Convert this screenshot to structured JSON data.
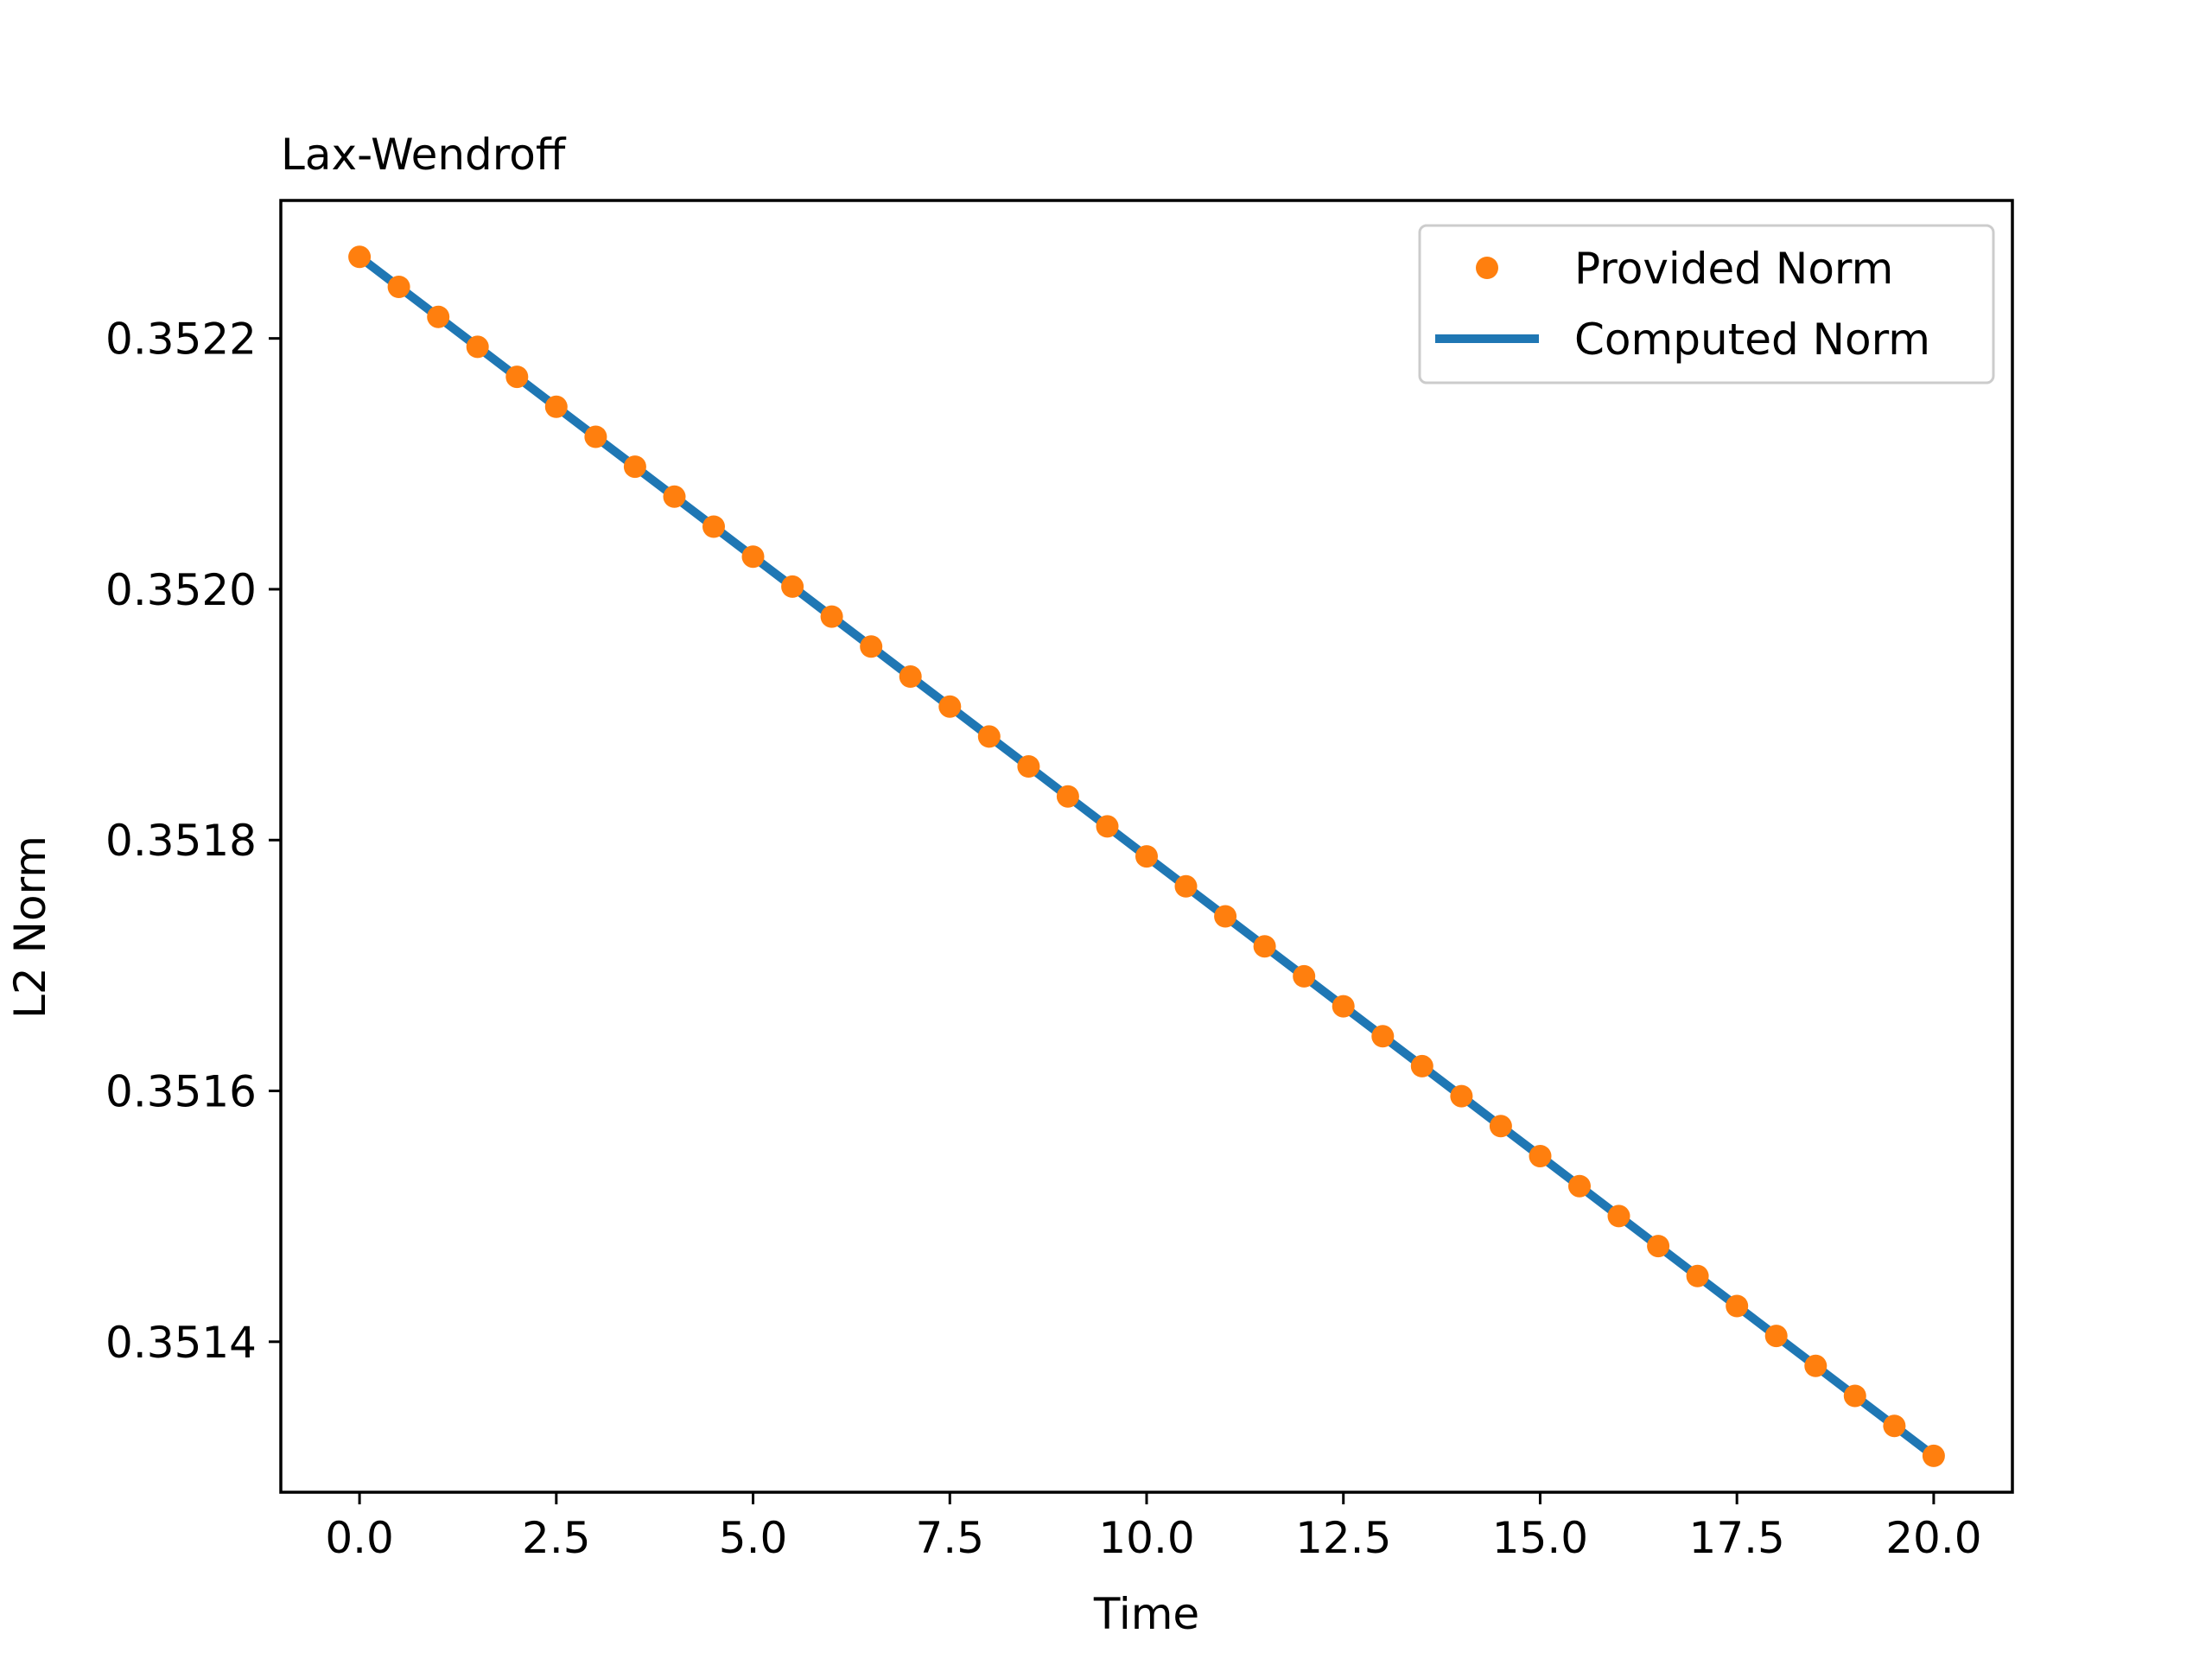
{
  "chart_data": {
    "type": "line",
    "title": "Lax-Wendroff",
    "xlabel": "Time",
    "ylabel": "L2 Norm",
    "xlim": [
      -1.0,
      21.0
    ],
    "ylim": [
      0.35128,
      0.35231
    ],
    "x_ticks": [
      0.0,
      2.5,
      5.0,
      7.5,
      10.0,
      12.5,
      15.0,
      17.5,
      20.0
    ],
    "x_tick_labels": [
      "0.0",
      "2.5",
      "5.0",
      "7.5",
      "10.0",
      "12.5",
      "15.0",
      "17.5",
      "20.0"
    ],
    "y_ticks": [
      0.3514,
      0.3516,
      0.3518,
      0.352,
      0.3522
    ],
    "y_tick_labels": [
      "0.3514",
      "0.3516",
      "0.3518",
      "0.3520",
      "0.3522"
    ],
    "grid": false,
    "legend_position": "top-right",
    "x": [
      0.0,
      0.5,
      1.0,
      1.5,
      2.0,
      2.5,
      3.0,
      3.5,
      4.0,
      4.5,
      5.0,
      5.5,
      6.0,
      6.5,
      7.0,
      7.5,
      8.0,
      8.5,
      9.0,
      9.5,
      10.0,
      10.5,
      11.0,
      11.5,
      12.0,
      12.5,
      13.0,
      13.5,
      14.0,
      14.5,
      15.0,
      15.5,
      16.0,
      16.5,
      17.0,
      17.5,
      18.0,
      18.5,
      19.0,
      19.5,
      20.0
    ],
    "series": [
      {
        "name": "Provided Norm",
        "style": "markers",
        "color": "#ff7f0e",
        "y_start": 0.352265,
        "y_end": 0.351309
      },
      {
        "name": "Computed Norm",
        "style": "line",
        "color": "#1f77b4",
        "y_start": 0.352265,
        "y_end": 0.351309
      }
    ]
  }
}
